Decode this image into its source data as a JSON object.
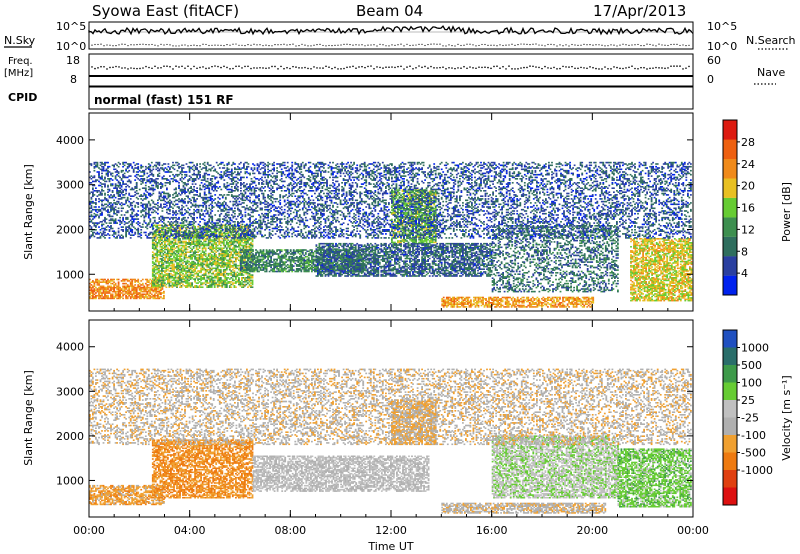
{
  "header": {
    "station": "Syowa East (fitACF)",
    "beam": "Beam 04",
    "date": "17/Apr/2013"
  },
  "top_panels": {
    "nsky_label": "N.Sky",
    "nsky_ticks": [
      "10^5",
      "10^0"
    ],
    "nsearch_label": "N.Search",
    "nsearch_ticks": [
      "10^5",
      "10^0"
    ],
    "freq_label_1": "Freq.",
    "freq_label_2": "[MHz]",
    "freq_ticks": [
      "18",
      "8"
    ],
    "nave_label": "Nave",
    "nave_ticks": [
      "60",
      "0"
    ],
    "cpid_label": "CPID",
    "cpid_value": "normal (fast) 151 RF"
  },
  "legend_colors": {
    "power": [
      "#0022ee",
      "#2a3fa0",
      "#2f6e5e",
      "#3d8f4f",
      "#66cc33",
      "#e8c022",
      "#f08a1a",
      "#ee6010",
      "#dd1a10"
    ],
    "velocity": [
      "#2050c0",
      "#2a6e6a",
      "#3d9a4a",
      "#66cc33",
      "#c0c0c0",
      "#b0b0b0",
      "#f0a030",
      "#ee7a10",
      "#e04010",
      "#dd1010"
    ]
  },
  "chart_data": [
    {
      "type": "heatmap",
      "title": "Syowa East (fitACF)  Beam 04  17/Apr/2013",
      "ylabel": "Slant Range [km]",
      "xlabel": "",
      "x_ticks": [
        "00:00",
        "04:00",
        "08:00",
        "12:00",
        "16:00",
        "20:00",
        "00:00"
      ],
      "y_ticks": [
        "1000",
        "2000",
        "3000",
        "4000"
      ],
      "ylim": [
        180,
        4600
      ],
      "xlim": [
        0,
        24
      ],
      "colorbar": {
        "label": "Power [dB]",
        "ticks": [
          "4",
          "8",
          "12",
          "16",
          "20",
          "24",
          "28"
        ],
        "range": [
          0,
          30
        ]
      },
      "regions": [
        {
          "t0": 0.0,
          "t1": 3.0,
          "r0": 450,
          "r1": 900,
          "value": 22
        },
        {
          "t0": 2.5,
          "t1": 6.5,
          "r0": 700,
          "r1": 2100,
          "value": 15
        },
        {
          "t0": 6.0,
          "t1": 11.0,
          "r0": 1050,
          "r1": 1550,
          "value": 10
        },
        {
          "t0": 9.0,
          "t1": 16.0,
          "r0": 950,
          "r1": 1700,
          "value": 7
        },
        {
          "t0": 12.0,
          "t1": 13.8,
          "r0": 1700,
          "r1": 2900,
          "value": 14
        },
        {
          "t0": 14.0,
          "t1": 20.0,
          "r0": 260,
          "r1": 480,
          "value": 21
        },
        {
          "t0": 16.0,
          "t1": 21.0,
          "r0": 600,
          "r1": 2100,
          "value": 8
        },
        {
          "t0": 21.5,
          "t1": 24.0,
          "r0": 400,
          "r1": 1800,
          "value": 18
        },
        {
          "t0": 0.0,
          "t1": 24.0,
          "r0": 1800,
          "r1": 3500,
          "value": 6
        }
      ]
    },
    {
      "type": "heatmap",
      "xlabel": "Time UT",
      "ylabel": "Slant Range [km]",
      "x_ticks": [
        "00:00",
        "04:00",
        "08:00",
        "12:00",
        "16:00",
        "20:00",
        "00:00"
      ],
      "y_ticks": [
        "1000",
        "2000",
        "3000",
        "4000"
      ],
      "ylim": [
        180,
        4600
      ],
      "xlim": [
        0,
        24
      ],
      "colorbar": {
        "label": "Velocity [m s⁻¹]",
        "ticks": [
          "1000",
          "500",
          "100",
          "25",
          "-25",
          "-100",
          "-500",
          "-1000"
        ],
        "range": [
          -1000,
          1000
        ]
      },
      "regions": [
        {
          "t0": 0.0,
          "t1": 3.0,
          "r0": 450,
          "r1": 900,
          "value": -300
        },
        {
          "t0": 2.5,
          "t1": 6.5,
          "r0": 600,
          "r1": 1900,
          "value": -400
        },
        {
          "t0": 6.5,
          "t1": 13.5,
          "r0": 750,
          "r1": 1550,
          "value": 0
        },
        {
          "t0": 12.0,
          "t1": 13.8,
          "r0": 1800,
          "r1": 2800,
          "value": -250
        },
        {
          "t0": 14.0,
          "t1": 20.5,
          "r0": 260,
          "r1": 480,
          "value": -150
        },
        {
          "t0": 16.0,
          "t1": 21.0,
          "r0": 600,
          "r1": 2000,
          "value": 150
        },
        {
          "t0": 21.0,
          "t1": 24.0,
          "r0": 400,
          "r1": 1700,
          "value": 300
        },
        {
          "t0": 0.0,
          "t1": 24.0,
          "r0": 1800,
          "r1": 3500,
          "value": -150
        }
      ]
    }
  ]
}
